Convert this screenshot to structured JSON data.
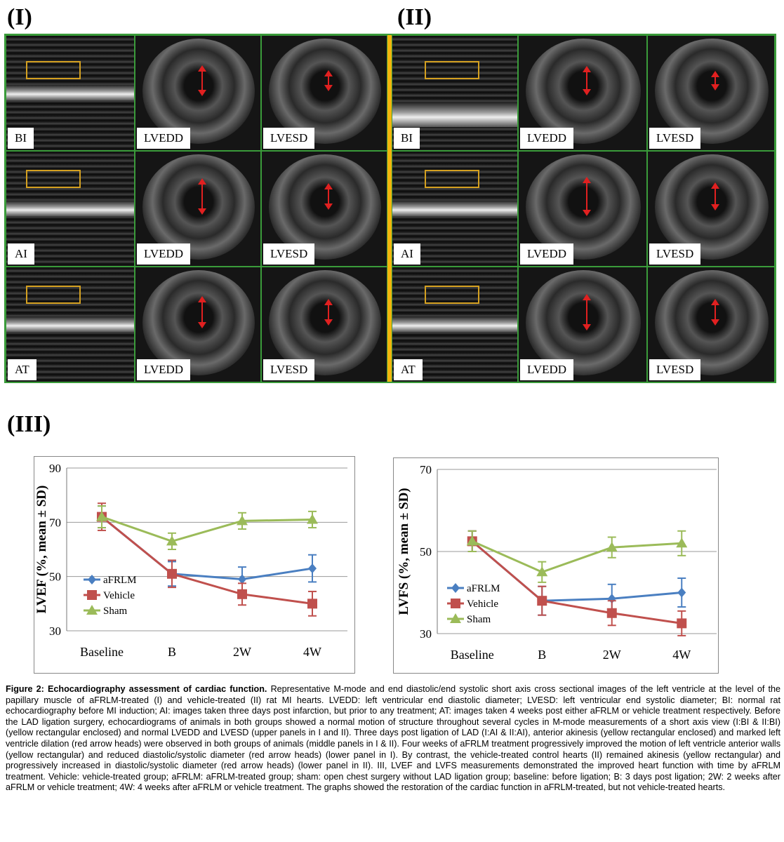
{
  "panel_labels": {
    "p1": "(I)",
    "p2": "(II)",
    "p3": "(III)"
  },
  "tile_labels": {
    "bi": "BI",
    "ai": "AI",
    "at": "AT",
    "lvedd": "LVEDD",
    "lvesd": "LVESD"
  },
  "colors": {
    "aFRLM": "#4a7fc1",
    "Vehicle": "#c0504d",
    "Sham": "#9bbb59",
    "grid_border": "#3a9b3a",
    "divider": "#f3b50d",
    "highlight_rect": "#d4a020",
    "arrow": "#e02020"
  },
  "chart_data": [
    {
      "type": "line",
      "ylabel": "LVEF (%, mean ± SD)",
      "xlabel": "",
      "categories": [
        "Baseline",
        "B",
        "2W",
        "4W"
      ],
      "ylim": [
        30,
        90
      ],
      "yticks": [
        30,
        50,
        70,
        90
      ],
      "grid": true,
      "legend": "left-middle",
      "series": [
        {
          "name": "aFRLM",
          "marker": "diamond",
          "values": [
            72,
            51,
            49,
            53
          ],
          "errors": [
            4,
            4.5,
            4.5,
            5
          ]
        },
        {
          "name": "Vehicle",
          "marker": "square",
          "values": [
            72,
            51,
            43.5,
            40
          ],
          "errors": [
            5,
            5,
            4,
            4.5
          ]
        },
        {
          "name": "Sham",
          "marker": "triangle",
          "values": [
            72,
            63,
            70.5,
            71
          ],
          "errors": [
            4,
            3,
            3,
            3
          ]
        }
      ]
    },
    {
      "type": "line",
      "ylabel": "LVFS (%, mean ± SD)",
      "xlabel": "",
      "categories": [
        "Baseline",
        "B",
        "2W",
        "4W"
      ],
      "ylim": [
        30,
        70
      ],
      "yticks": [
        30,
        50,
        70
      ],
      "grid": true,
      "legend": "left-middle",
      "series": [
        {
          "name": "aFRLM",
          "marker": "diamond",
          "values": [
            52.5,
            38,
            38.5,
            40
          ],
          "errors": [
            2.5,
            3.5,
            3.5,
            3.5
          ]
        },
        {
          "name": "Vehicle",
          "marker": "square",
          "values": [
            52.5,
            38,
            35,
            32.5
          ],
          "errors": [
            2.5,
            3.5,
            3,
            3
          ]
        },
        {
          "name": "Sham",
          "marker": "triangle",
          "values": [
            52.5,
            45,
            51,
            52
          ],
          "errors": [
            2.5,
            2.5,
            2.5,
            3
          ]
        }
      ]
    }
  ],
  "caption": {
    "title": "Figure 2: Echocardiography assessment of cardiac function.",
    "body": " Representative M-mode and end diastolic/end systolic short axis cross sectional images of the left ventricle at the level of the papillary muscle of aFRLM-treated (I) and vehicle-treated (II) rat MI hearts. LVEDD: left ventricular end diastolic diameter; LVESD: left ventricular end systolic diameter; BI: normal rat echocardiography before MI induction; AI: images taken three days post infarction, but prior to any treatment; AT: images taken 4 weeks post either aFRLM or vehicle treatment respectively. Before the LAD ligation surgery, echocardiograms of animals in both groups showed a normal motion of structure throughout several cycles in M-mode measurements of a short axis view (I:BI & II:BI) (yellow rectangular enclosed) and normal LVEDD and LVESD (upper panels in I and II). Three days post ligation of LAD (I:AI & II:AI), anterior akinesis (yellow rectangular enclosed) and marked left ventricle dilation (red arrow heads) were observed in both groups of animals (middle panels in I & II). Four weeks of aFRLM treatment progressively improved the motion of left ventricle anterior walls (yellow rectangular) and reduced diastolic/systolic diameter (red arrow heads) (lower panel in I). By contrast, the vehicle-treated control hearts (II) remained akinesis (yellow rectangular) and progressively increased in diastolic/systolic diameter (red arrow heads) (lower panel in II). III, LVEF and LVFS measurements demonstrated the improved heart function with time by aFRLM treatment. Vehicle: vehicle-treated group; aFRLM: aFRLM-treated group; sham: open chest surgery without LAD ligation group; baseline: before ligation; B: 3 days post ligation; 2W: 2 weeks after aFRLM or vehicle treatment; 4W: 4 weeks after aFRLM or vehicle treatment. The graphs showed the restoration of the cardiac function in aFRLM-treated, but not vehicle-treated hearts."
  }
}
